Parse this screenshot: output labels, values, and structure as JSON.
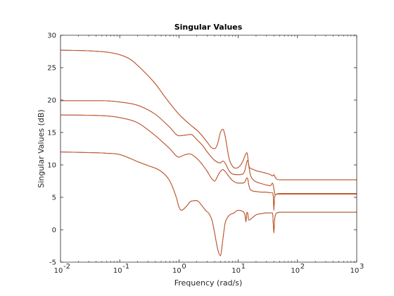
{
  "chart_data": {
    "type": "line",
    "title": "Singular Values",
    "xlabel": "Frequency (rad/s)",
    "ylabel": "Singular Values (dB)",
    "xscale": "log",
    "xlim": [
      0.01,
      1000
    ],
    "ylim": [
      -5,
      30
    ],
    "grid": false,
    "x_ticks": [
      {
        "value": 0.01,
        "base": "10",
        "exp": "-2"
      },
      {
        "value": 0.1,
        "base": "10",
        "exp": "-1"
      },
      {
        "value": 1,
        "base": "10",
        "exp": "0"
      },
      {
        "value": 10,
        "base": "10",
        "exp": "1"
      },
      {
        "value": 100,
        "base": "10",
        "exp": "2"
      },
      {
        "value": 1000,
        "base": "10",
        "exp": "3"
      }
    ],
    "y_ticks": [
      {
        "value": -5,
        "label": "-5"
      },
      {
        "value": 0,
        "label": "0"
      },
      {
        "value": 5,
        "label": "5"
      },
      {
        "value": 10,
        "label": "10"
      },
      {
        "value": 15,
        "label": "15"
      },
      {
        "value": 20,
        "label": "20"
      },
      {
        "value": 25,
        "label": "25"
      },
      {
        "value": 30,
        "label": "30"
      }
    ],
    "colors": {
      "line": "#d95319",
      "line_under": "#0072bd",
      "axes": "#262626"
    },
    "series": [
      {
        "x": [
          0.01,
          0.03,
          0.06,
          0.1,
          0.15,
          0.25,
          0.4,
          0.6,
          1.0,
          1.5,
          2.2,
          3.0,
          3.5,
          4.0,
          4.5,
          5.0,
          5.5,
          6.0,
          7.0,
          8.0,
          9.0,
          10.0,
          11.0,
          12.0,
          13.0,
          14.0,
          14.5,
          15.0,
          16.0,
          18.0,
          20.0,
          25.0,
          30.0,
          35.0,
          38.0,
          40.0,
          42.0,
          45.0,
          50.0,
          70.0,
          100,
          300,
          1000
        ],
        "y": [
          27.7,
          27.6,
          27.4,
          27.0,
          26.3,
          24.5,
          22.5,
          20.3,
          17.8,
          16.3,
          15.0,
          13.5,
          12.7,
          12.5,
          13.3,
          15.0,
          15.5,
          14.5,
          11.0,
          9.8,
          9.5,
          9.6,
          10.0,
          10.6,
          11.4,
          11.9,
          11.2,
          10.0,
          9.5,
          9.3,
          9.1,
          8.9,
          8.7,
          8.5,
          8.3,
          8.5,
          8.1,
          7.8,
          7.7,
          7.7,
          7.7,
          7.7,
          7.7
        ]
      },
      {
        "x": [
          0.01,
          0.05,
          0.1,
          0.2,
          0.4,
          0.7,
          1.0,
          1.3,
          1.6,
          2.0,
          2.5,
          3.0,
          4.0,
          5.0,
          5.5,
          6.0,
          7.0,
          8.0,
          10.0,
          12.0,
          13.0,
          14.0,
          14.5,
          15.0,
          16.0,
          18.0,
          20.0,
          25.0,
          30.0,
          35.0,
          38.0,
          40.0,
          42.0,
          45.0,
          50.0,
          100,
          300,
          1000
        ],
        "y": [
          19.9,
          19.9,
          19.7,
          19.2,
          17.8,
          15.8,
          14.5,
          14.6,
          14.7,
          13.9,
          13.0,
          12.0,
          10.7,
          10.3,
          10.6,
          10.3,
          9.1,
          8.6,
          8.5,
          8.6,
          9.2,
          10.5,
          10.7,
          10.0,
          8.5,
          7.7,
          7.4,
          7.1,
          6.9,
          6.8,
          7.2,
          6.3,
          5.4,
          5.5,
          5.6,
          5.6,
          5.6,
          5.6
        ]
      },
      {
        "x": [
          0.01,
          0.05,
          0.1,
          0.2,
          0.4,
          0.7,
          1.0,
          1.2,
          1.5,
          2.0,
          2.5,
          3.0,
          3.5,
          4.0,
          4.5,
          5.0,
          5.5,
          6.0,
          7.0,
          8.0,
          10.0,
          12.0,
          13.0,
          14.0,
          14.5,
          15.0,
          16.0,
          20.0,
          25.0,
          30.0,
          35.0,
          38.0,
          39.0,
          40.0,
          41.0,
          45.0,
          50.0,
          100,
          300,
          1000
        ],
        "y": [
          17.7,
          17.6,
          17.3,
          16.5,
          14.5,
          12.5,
          11.2,
          11.5,
          11.7,
          11.0,
          10.0,
          9.0,
          8.0,
          7.5,
          8.3,
          9.0,
          9.3,
          9.0,
          8.2,
          7.6,
          7.2,
          7.2,
          7.4,
          8.0,
          7.8,
          7.0,
          6.2,
          5.9,
          5.8,
          5.8,
          5.7,
          5.7,
          5.2,
          3.0,
          5.0,
          5.5,
          5.5,
          5.5,
          5.5,
          5.5
        ]
      },
      {
        "x": [
          0.01,
          0.03,
          0.06,
          0.1,
          0.15,
          0.2,
          0.3,
          0.5,
          0.7,
          0.9,
          1.0,
          1.1,
          1.3,
          1.6,
          2.0,
          2.4,
          2.8,
          3.2,
          3.6,
          4.0,
          4.5,
          5.0,
          5.5,
          6.0,
          6.5,
          7.0,
          7.5,
          8.0,
          8.5,
          9.0,
          10.0,
          12.0,
          13.0,
          13.5,
          14.0,
          14.5,
          15.0,
          16.0,
          18.0,
          20.0,
          25.0,
          30.0,
          35.0,
          38.0,
          39.0,
          40.0,
          41.0,
          45.0,
          50.0,
          60.0,
          100,
          300,
          1000
        ],
        "y": [
          12.0,
          11.9,
          11.8,
          11.6,
          11.0,
          10.5,
          9.9,
          9.0,
          7.5,
          5.0,
          3.5,
          3.0,
          3.5,
          4.4,
          4.5,
          3.8,
          3.0,
          2.5,
          1.5,
          -0.5,
          -3.0,
          -4.0,
          -1.5,
          1.0,
          1.8,
          2.2,
          2.4,
          2.5,
          2.6,
          2.8,
          3.0,
          2.8,
          2.3,
          1.2,
          2.7,
          2.5,
          1.5,
          1.6,
          2.0,
          2.3,
          2.5,
          2.6,
          2.6,
          2.6,
          1.0,
          -0.5,
          1.5,
          2.6,
          2.7,
          2.7,
          2.7,
          2.7,
          2.7
        ]
      }
    ]
  }
}
